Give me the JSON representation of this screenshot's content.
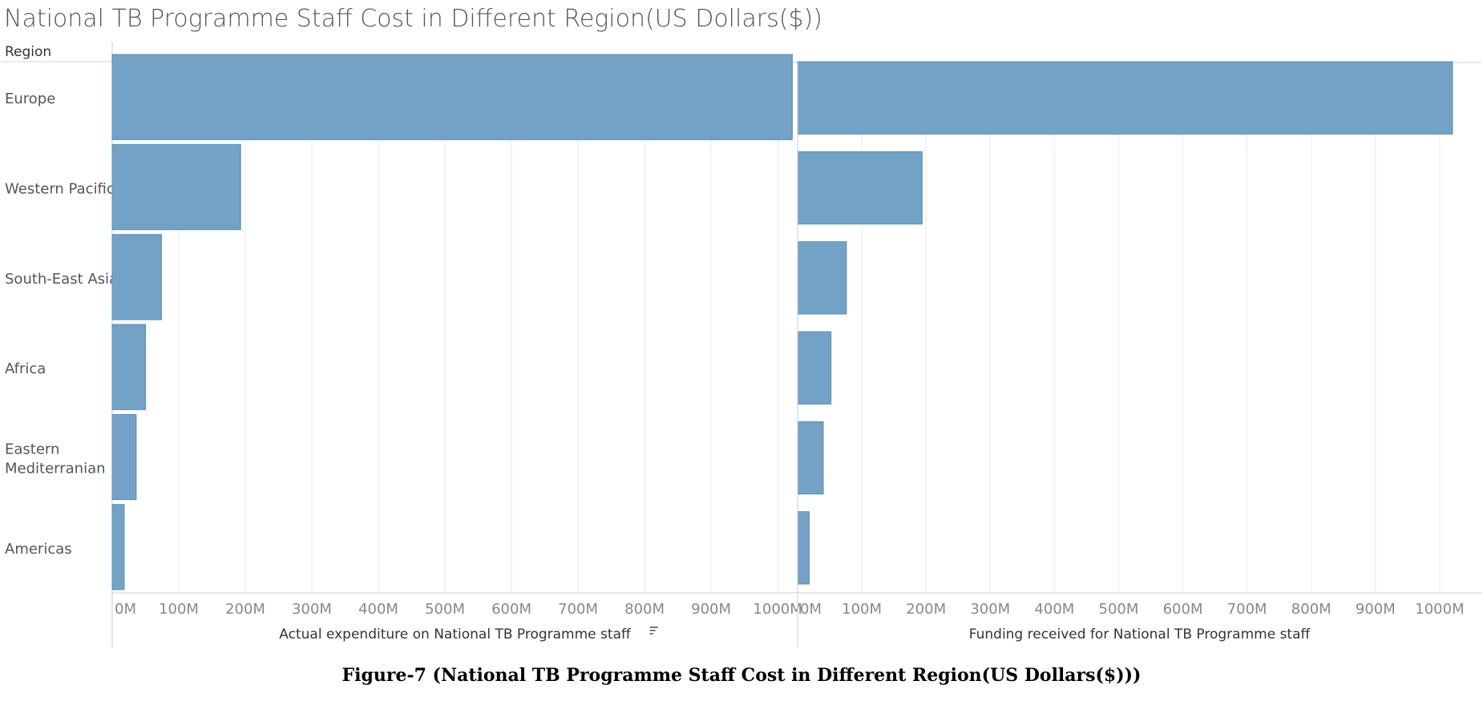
{
  "header": {
    "title": "National TB Programme Staff  Cost in Different Region(US Dollars($))",
    "row_header": "Region",
    "caption": "Figure-7 (National TB Programme Staff  Cost in Different Region(US Dollars($)))"
  },
  "colors": {
    "bar": "#73a2c6",
    "bar_edge": "#5b8db3",
    "grid": "#ebebeb",
    "axis": "#cccccc",
    "tick_text": "#888888"
  },
  "chart_data": {
    "type": "bar",
    "orientation": "horizontal",
    "categories": [
      "Europe",
      "Western Pacific",
      "South-East Asia",
      "Africa",
      "Eastern Mediterranian",
      "Americas"
    ],
    "category_lines": [
      [
        "Europe"
      ],
      [
        "Western Pacific"
      ],
      [
        "South-East Asia"
      ],
      [
        "Africa"
      ],
      [
        "Eastern",
        "Mediterranian"
      ],
      [
        "Americas"
      ]
    ],
    "panels": [
      {
        "xlabel": "Actual expenditure on National TB Programme staff",
        "sort_icon": "sort-descending-icon",
        "values": [
          1022,
          193,
          74,
          50,
          36,
          18
        ],
        "xlim": [
          0,
          1030
        ],
        "ticks": [
          0,
          100,
          200,
          300,
          400,
          500,
          600,
          700,
          800,
          900,
          1000
        ],
        "tick_labels": [
          "0M",
          "100M",
          "200M",
          "300M",
          "400M",
          "500M",
          "600M",
          "700M",
          "800M",
          "900M",
          "1000M"
        ]
      },
      {
        "xlabel": "Funding received for National TB Programme staff",
        "values": [
          1020,
          194,
          76,
          52,
          40,
          18
        ],
        "xlim": [
          0,
          1065
        ],
        "ticks": [
          0,
          100,
          200,
          300,
          400,
          500,
          600,
          700,
          800,
          900,
          1000
        ],
        "tick_labels": [
          "0M",
          "100M",
          "200M",
          "300M",
          "400M",
          "500M",
          "600M",
          "700M",
          "800M",
          "900M",
          "1000M"
        ]
      }
    ],
    "unit": "M",
    "grid": true
  }
}
